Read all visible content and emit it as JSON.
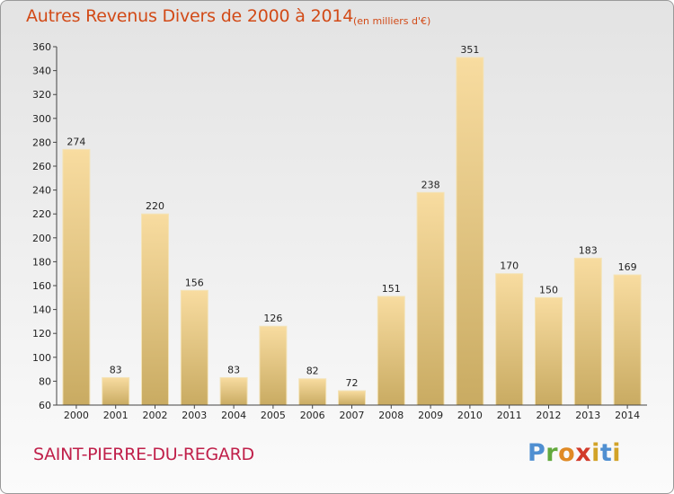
{
  "title": "Autres Revenus Divers de 2000 à 2014",
  "subtitle": "(en milliers d'€)",
  "commune": "SAINT-PIERRE-DU-REGARD",
  "logo": "Proxiti",
  "colors": {
    "title": "#d24a17",
    "commune": "#c0204a",
    "bar_light": "#f8dca0",
    "bar_dark": "#c9ab62"
  },
  "chart_data": {
    "type": "bar",
    "categories": [
      "2000",
      "2001",
      "2002",
      "2003",
      "2004",
      "2005",
      "2006",
      "2007",
      "2008",
      "2009",
      "2010",
      "2011",
      "2012",
      "2013",
      "2014"
    ],
    "values": [
      274,
      83,
      220,
      156,
      83,
      126,
      82,
      72,
      151,
      238,
      351,
      170,
      150,
      183,
      169
    ],
    "ylim": [
      60,
      360
    ],
    "yticks": [
      60,
      80,
      100,
      120,
      140,
      160,
      180,
      200,
      220,
      240,
      260,
      280,
      300,
      320,
      340,
      360
    ],
    "grid": false,
    "title": "Autres Revenus Divers de 2000 à 2014",
    "subtitle": "(en milliers d'€)",
    "xlabel": "",
    "ylabel": ""
  }
}
